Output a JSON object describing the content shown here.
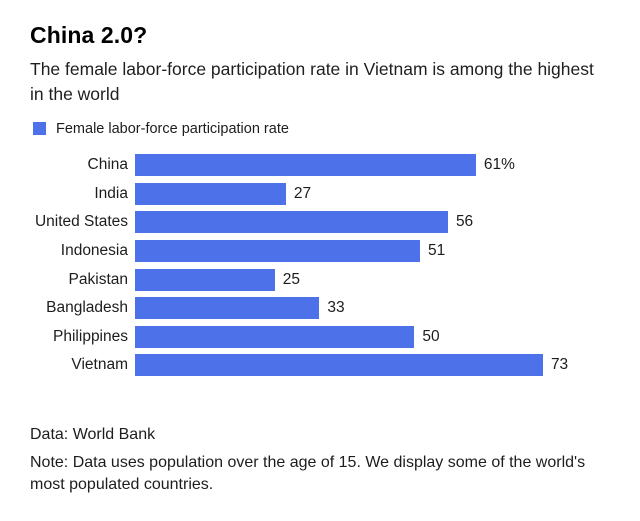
{
  "header": {
    "title": "China 2.0?",
    "subtitle": "The female labor-force participation rate in Vietnam is among the highest in the world"
  },
  "legend": {
    "label": "Female labor-force participation rate",
    "swatch_color": "#4d71e8"
  },
  "chart_data": {
    "type": "bar",
    "orientation": "horizontal",
    "title": "China 2.0?",
    "subtitle": "The female labor-force participation rate in Vietnam is among the highest in the world",
    "series_name": "Female labor-force participation rate",
    "categories": [
      "China",
      "India",
      "United States",
      "Indonesia",
      "Pakistan",
      "Bangladesh",
      "Philippines",
      "Vietnam"
    ],
    "values": [
      61,
      27,
      56,
      51,
      25,
      33,
      50,
      73
    ],
    "value_labels": [
      "61%",
      "27",
      "56",
      "51",
      "25",
      "33",
      "50",
      "73"
    ],
    "unit": "%",
    "xlim": [
      0,
      85
    ],
    "grid": false,
    "legend_position": "top-left",
    "bar_color": "#4d71e8"
  },
  "footer": {
    "source": "Data: World Bank",
    "note": "Note: Data uses population over the age of 15. We display some of the world's most populated countries."
  }
}
